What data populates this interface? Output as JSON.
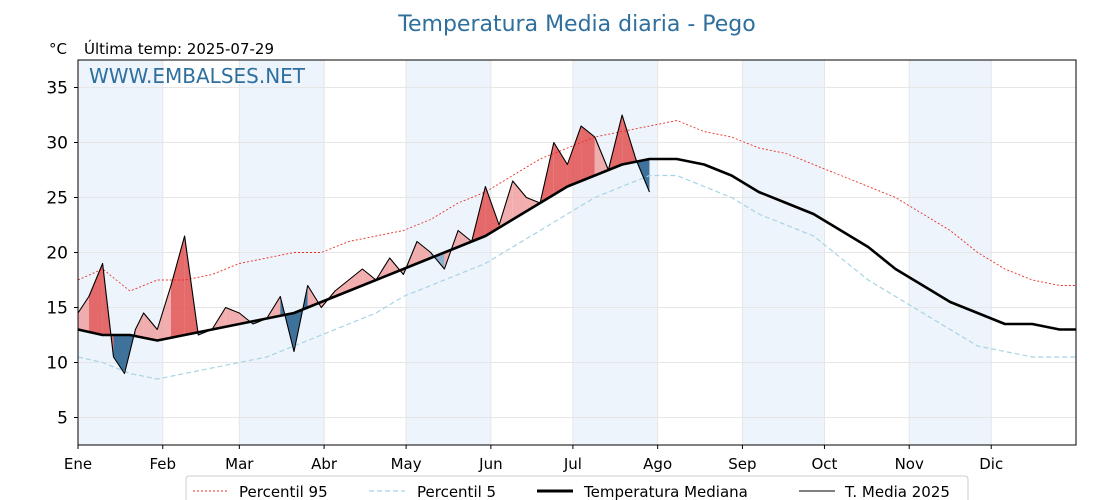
{
  "header": {
    "title": "Temperatura Media diaria - Pego",
    "unit": "°C",
    "last_temp": "Última temp: 2025-07-29",
    "watermark": "WWW.EMBALSES.NET"
  },
  "legend": {
    "p95": "Percentil 95",
    "p5": "Percentil 5",
    "median": "Temperatura Mediana",
    "current": "T. Media 2025"
  },
  "colors": {
    "title": "#2e6f9e",
    "band": "#eef4fb",
    "p95": "#e8302a",
    "p5": "#a8d4e6",
    "median": "#000000",
    "current": "#000000",
    "fill_above": "#f0a0a0",
    "fill_above_strong": "#e05050",
    "fill_below": "#7fa6c8",
    "fill_below_strong": "#1f5a8a"
  },
  "chart_data": {
    "type": "line",
    "title": "Temperatura Media diaria - Pego",
    "ylabel": "°C",
    "xlabel": "",
    "x_unit": "día del año",
    "xlim": [
      1,
      366
    ],
    "ylim": [
      2.5,
      37.5
    ],
    "yticks": [
      5,
      10,
      15,
      20,
      25,
      30,
      35
    ],
    "grid": true,
    "legend_position": "bottom",
    "month_labels": [
      "Ene",
      "Feb",
      "Mar",
      "Abr",
      "May",
      "Jun",
      "Jul",
      "Ago",
      "Sep",
      "Oct",
      "Nov",
      "Dic"
    ],
    "month_start_days": [
      1,
      32,
      60,
      91,
      121,
      152,
      182,
      213,
      244,
      274,
      305,
      335
    ],
    "series": [
      {
        "name": "Percentil 95",
        "style": "dotted-red",
        "x": [
          1,
          10,
          20,
          30,
          40,
          50,
          60,
          70,
          80,
          90,
          100,
          110,
          120,
          130,
          140,
          150,
          160,
          170,
          180,
          190,
          200,
          210,
          220,
          230,
          240,
          250,
          260,
          270,
          280,
          290,
          300,
          310,
          320,
          330,
          340,
          350,
          360,
          366
        ],
        "y": [
          17.5,
          18.5,
          16.5,
          17.5,
          17.5,
          18.0,
          19.0,
          19.5,
          20.0,
          20.0,
          21.0,
          21.5,
          22.0,
          23.0,
          24.5,
          25.5,
          27.0,
          28.5,
          29.5,
          30.5,
          31.0,
          31.5,
          32.0,
          31.0,
          30.5,
          29.5,
          29.0,
          28.0,
          27.0,
          26.0,
          25.0,
          23.5,
          22.0,
          20.0,
          18.5,
          17.5,
          17.0,
          17.0
        ]
      },
      {
        "name": "Percentil 5",
        "style": "dashed-lightblue",
        "x": [
          1,
          10,
          20,
          30,
          40,
          50,
          60,
          70,
          80,
          90,
          100,
          110,
          120,
          130,
          140,
          150,
          160,
          170,
          180,
          190,
          200,
          210,
          220,
          230,
          240,
          250,
          260,
          270,
          280,
          290,
          300,
          310,
          320,
          330,
          340,
          350,
          360,
          366
        ],
        "y": [
          10.5,
          10.0,
          9.0,
          8.5,
          9.0,
          9.5,
          10.0,
          10.5,
          11.5,
          12.5,
          13.5,
          14.5,
          16.0,
          17.0,
          18.0,
          19.0,
          20.5,
          22.0,
          23.5,
          25.0,
          26.0,
          27.0,
          27.0,
          26.0,
          25.0,
          23.5,
          22.5,
          21.5,
          19.5,
          17.5,
          16.0,
          14.5,
          13.0,
          11.5,
          11.0,
          10.5,
          10.5,
          10.5
        ]
      },
      {
        "name": "Temperatura Mediana",
        "style": "thick-black",
        "x": [
          1,
          10,
          20,
          30,
          40,
          50,
          60,
          70,
          80,
          90,
          100,
          110,
          120,
          130,
          140,
          150,
          160,
          170,
          180,
          190,
          200,
          210,
          220,
          230,
          240,
          250,
          260,
          270,
          280,
          290,
          300,
          310,
          320,
          330,
          340,
          350,
          360,
          366
        ],
        "y": [
          13.0,
          12.5,
          12.5,
          12.0,
          12.5,
          13.0,
          13.5,
          14.0,
          14.5,
          15.5,
          16.5,
          17.5,
          18.5,
          19.5,
          20.5,
          21.5,
          23.0,
          24.5,
          26.0,
          27.0,
          28.0,
          28.5,
          28.5,
          28.0,
          27.0,
          25.5,
          24.5,
          23.5,
          22.0,
          20.5,
          18.5,
          17.0,
          15.5,
          14.5,
          13.5,
          13.5,
          13.0,
          13.0
        ]
      },
      {
        "name": "T. Media 2025",
        "style": "thin-black",
        "x": [
          1,
          5,
          10,
          14,
          18,
          22,
          25,
          30,
          35,
          40,
          45,
          50,
          55,
          60,
          65,
          70,
          75,
          80,
          85,
          90,
          95,
          100,
          105,
          110,
          115,
          120,
          125,
          130,
          135,
          140,
          145,
          150,
          155,
          160,
          165,
          170,
          175,
          180,
          185,
          190,
          195,
          200,
          205,
          210
        ],
        "y": [
          14.5,
          16.0,
          19.0,
          10.5,
          9.0,
          13.0,
          14.5,
          13.0,
          17.0,
          21.5,
          12.5,
          13.0,
          15.0,
          14.5,
          13.5,
          14.0,
          16.0,
          11.0,
          17.0,
          15.0,
          16.5,
          17.5,
          18.5,
          17.5,
          19.5,
          18.0,
          21.0,
          20.0,
          18.5,
          22.0,
          21.0,
          26.0,
          22.5,
          26.5,
          25.0,
          24.5,
          30.0,
          28.0,
          31.5,
          30.5,
          27.5,
          32.5,
          28.5,
          25.5
        ]
      }
    ]
  }
}
